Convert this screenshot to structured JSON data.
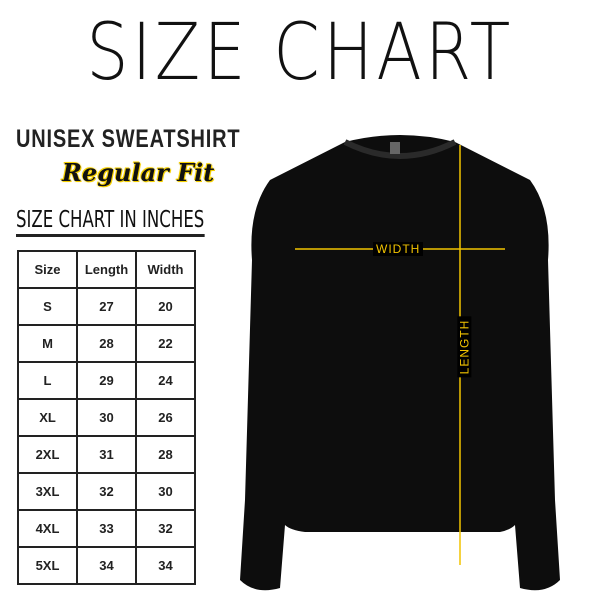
{
  "title": "SIZE CHART",
  "product": "UNISEX SWEATSHIRT",
  "fit": "Regular Fit",
  "table_title": "SIZE CHART IN INCHES",
  "table": {
    "headers": [
      "Size",
      "Length",
      "Width"
    ],
    "rows": [
      [
        "S",
        "27",
        "20"
      ],
      [
        "M",
        "28",
        "22"
      ],
      [
        "L",
        "29",
        "24"
      ],
      [
        "XL",
        "30",
        "26"
      ],
      [
        "2XL",
        "31",
        "28"
      ],
      [
        "3XL",
        "32",
        "30"
      ],
      [
        "4XL",
        "33",
        "32"
      ],
      [
        "5XL",
        "34",
        "34"
      ]
    ]
  },
  "measure": {
    "width_label": "WIDTH",
    "length_label": "LENGTH",
    "line_color": "#f2c300"
  }
}
